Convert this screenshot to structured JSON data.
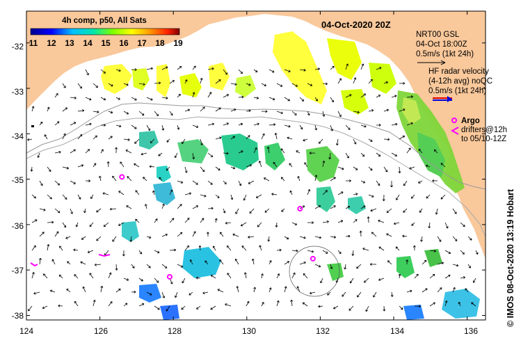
{
  "map": {
    "title": "04-Oct-2020 20Z",
    "lon_range": [
      124,
      136.5
    ],
    "lat_range": [
      -38.1,
      -31.3
    ],
    "x_ticks": [
      "124",
      "126",
      "128",
      "130",
      "132",
      "134",
      "136"
    ],
    "y_ticks": [
      "-32",
      "-33",
      "-34",
      "-35",
      "-36",
      "-37",
      "-38"
    ],
    "land_color": "#f9c89b",
    "sea_color": "#ffffff"
  },
  "colorbar": {
    "title": "4h comp, p50, All Sats",
    "labels": [
      "11",
      "12",
      "13",
      "14",
      "15",
      "16",
      "17",
      "18",
      "19"
    ],
    "colors": [
      "#00008f",
      "#0000ff",
      "#00bfff",
      "#00e5b0",
      "#7fff00",
      "#ffff00",
      "#ff9900",
      "#ff2200",
      "#7f0000"
    ]
  },
  "legend": {
    "gsl_line1": "NRT00 GSL",
    "gsl_line2": "04-Oct 18:00Z",
    "gsl_line3": "0.5m/s (1kt 24h)",
    "hf_line1": "HF radar velocity",
    "hf_line2": "(4-12h avg) noQC",
    "hf_line3": "0.5m/s (1kt 24h)",
    "argo_label": "Argo",
    "drifter_line1": "drifters@12h",
    "drifter_line2": "to 05/10-12Z",
    "arrow_color": "#000000",
    "hf_arrow_color": "#0000dd",
    "hf_arrow_color2": "#dd0000",
    "argo_color": "#ff00ff"
  },
  "argo_floats": [
    {
      "lon": 126.6,
      "lat": -34.95
    },
    {
      "lon": 131.45,
      "lat": -35.65
    },
    {
      "lon": 127.9,
      "lat": -37.15
    },
    {
      "lon": 131.8,
      "lat": -36.75
    }
  ],
  "credit": "© IMOS 08-Oct-2020 13:19 Hobart"
}
